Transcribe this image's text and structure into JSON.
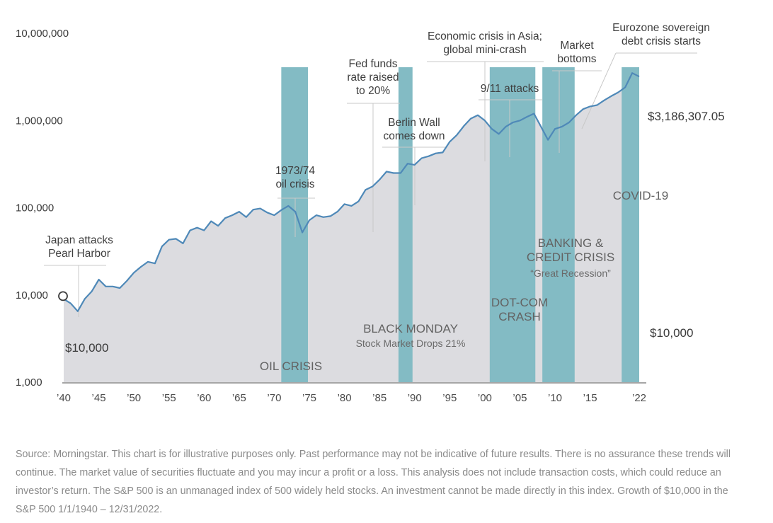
{
  "chart_data": {
    "type": "area",
    "scale": "log",
    "ylim": [
      1000,
      10000000
    ],
    "y_ticks": [
      {
        "value": 1000,
        "label": "1,000"
      },
      {
        "value": 10000,
        "label": "10,000"
      },
      {
        "value": 100000,
        "label": "100,000"
      },
      {
        "value": 1000000,
        "label": "1,000,000"
      },
      {
        "value": 10000000,
        "label": "10,000,000"
      }
    ],
    "xlim": [
      1940,
      2022
    ],
    "x_ticks": [
      {
        "year": 1940,
        "label": "’40"
      },
      {
        "year": 1945,
        "label": "’45"
      },
      {
        "year": 1950,
        "label": "’50"
      },
      {
        "year": 1955,
        "label": "’55"
      },
      {
        "year": 1960,
        "label": "’60"
      },
      {
        "year": 1965,
        "label": "’65"
      },
      {
        "year": 1970,
        "label": "’70"
      },
      {
        "year": 1975,
        "label": "’75"
      },
      {
        "year": 1980,
        "label": "’80"
      },
      {
        "year": 1985,
        "label": "’85"
      },
      {
        "year": 1990,
        "label": "’90"
      },
      {
        "year": 1995,
        "label": "’95"
      },
      {
        "year": 2000,
        "label": "’00"
      },
      {
        "year": 2005,
        "label": "’05"
      },
      {
        "year": 2010,
        "label": "’10"
      },
      {
        "year": 2015,
        "label": "’15"
      },
      {
        "year": 2022,
        "label": "’22"
      }
    ],
    "series": [
      {
        "color": "#4f89b8",
        "fill": "#dcdce0",
        "x": [
          1940,
          1941,
          1942,
          1943,
          1944,
          1945,
          1946,
          1947,
          1948,
          1949,
          1950,
          1951,
          1952,
          1953,
          1954,
          1955,
          1956,
          1957,
          1958,
          1959,
          1960,
          1961,
          1962,
          1963,
          1964,
          1965,
          1966,
          1967,
          1968,
          1969,
          1970,
          1971,
          1972,
          1973,
          1974,
          1975,
          1976,
          1977,
          1978,
          1979,
          1980,
          1981,
          1982,
          1983,
          1984,
          1985,
          1986,
          1987,
          1988,
          1989,
          1990,
          1991,
          1992,
          1993,
          1994,
          1995,
          1996,
          1997,
          1998,
          1999,
          2000,
          2001,
          2002,
          2003,
          2004,
          2005,
          2006,
          2007,
          2008,
          2009,
          2010,
          2011,
          2012,
          2013,
          2014,
          2015,
          2016,
          2017,
          2018,
          2019,
          2020,
          2021,
          2022
        ],
        "values": [
          9000,
          8000,
          6500,
          9000,
          11000,
          15000,
          12500,
          12500,
          12000,
          14500,
          18000,
          21000,
          24000,
          23000,
          36000,
          43000,
          44000,
          39000,
          55000,
          59000,
          55000,
          70000,
          62000,
          76000,
          82000,
          90000,
          78000,
          95000,
          98000,
          88000,
          82000,
          94000,
          105000,
          90000,
          52000,
          72000,
          82000,
          78000,
          80000,
          90000,
          110000,
          105000,
          118000,
          160000,
          175000,
          210000,
          260000,
          250000,
          250000,
          320000,
          310000,
          370000,
          390000,
          420000,
          430000,
          570000,
          680000,
          860000,
          1050000,
          1150000,
          1000000,
          800000,
          700000,
          850000,
          950000,
          1000000,
          1100000,
          1200000,
          850000,
          600000,
          800000,
          850000,
          950000,
          1150000,
          1350000,
          1450000,
          1500000,
          1700000,
          1900000,
          2100000,
          2400000,
          3500000,
          3186307
        ]
      }
    ],
    "periods": [
      {
        "label": "OIL CRISIS",
        "start": 1971,
        "end": 1974.8
      },
      {
        "label": "BLACK MONDAY",
        "sublabel": "Stock Market Drops 21%",
        "start": 1987.7,
        "end": 1989.7
      },
      {
        "label_lines": [
          "DOT-COM",
          "CRASH"
        ],
        "start": 2000.7,
        "end": 2007.2
      },
      {
        "label_lines": [
          "BANKING &",
          "CREDIT CRISIS"
        ],
        "sublabel": "“Great Recession”",
        "start": 2008.2,
        "end": 2012.8
      },
      {
        "label": "COVID-19",
        "start": 2019.5,
        "end": 2022
      }
    ],
    "annotations": [
      {
        "lines": [
          "Japan attacks",
          "Pearl Harbor"
        ],
        "year": 1941.8
      },
      {
        "lines": [
          "1973/74",
          "oil crisis"
        ],
        "year": 1972.8
      },
      {
        "lines": [
          "Fed funds",
          "rate raised",
          "to 20%"
        ],
        "year": 1983
      },
      {
        "lines": [
          "Berlin Wall",
          "comes down"
        ],
        "year": 1989
      },
      {
        "lines": [
          "Economic crisis in Asia;",
          "global mini-crash"
        ],
        "year": 1999
      },
      {
        "lines": [
          "9/11 attacks"
        ],
        "year": 2002
      },
      {
        "lines": [
          "Market",
          "bottoms"
        ],
        "year": 2009.2
      },
      {
        "lines": [
          "Eurozone sovereign",
          "debt crisis starts"
        ],
        "year": 2012.3
      }
    ],
    "start_label": "$10,000",
    "end_label": "$3,186,307.05",
    "right_label": "$10,000"
  },
  "footnote": "Source: Morningstar. This chart is for illustrative purposes only. Past performance may not be indicative of future results. There is no assurance these trends will continue. The market value of securities fluctuate and you may incur a profit or a loss. This analysis does not include transaction costs, which could reduce an investor’s return. The S&P 500 is an unmanaged index of 500 widely held stocks. An investment cannot be made directly in this index. Growth of $10,000 in the S&P 500 1/1/1940 – 12/31/2022."
}
